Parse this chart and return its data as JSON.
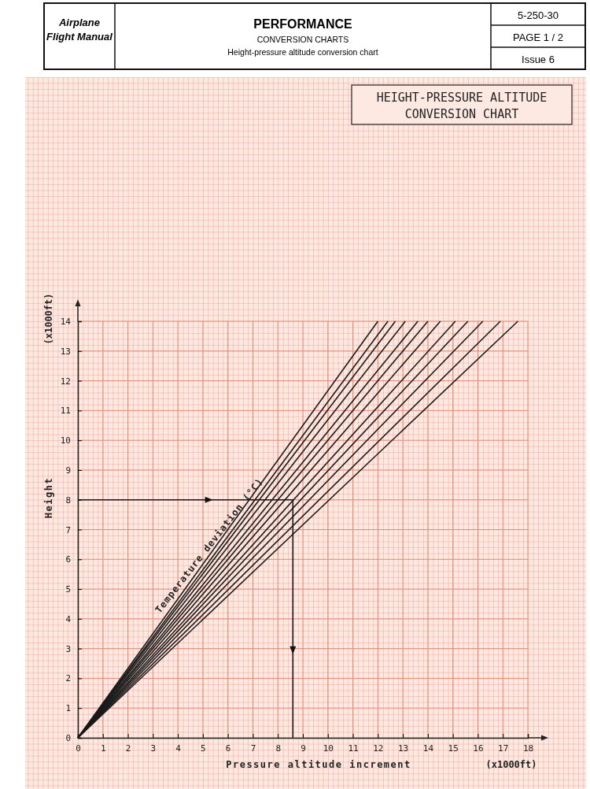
{
  "chart_data": {
    "type": "line",
    "title": "HEIGHT-PRESSURE ALTITUDE\nCONVERSION CHART",
    "xlabel": "Pressure altitude increment",
    "ylabel": "Height",
    "annotations": [
      "Airplane\nFlight Manual",
      "PERFORMANCE",
      "CONVERSION CHARTS",
      "Height-pressure altitude conversion chart",
      "5-250-30",
      "PAGE 1 / 2",
      "Issue 6",
      "(x1000ft)",
      "(x1000ft)",
      {
        "text": "Temperature deviation (°C)",
        "x": 5.6,
        "y": 6.4
      }
    ],
    "xlim": [
      0,
      18
    ],
    "ylim": [
      0,
      14
    ],
    "xticks": [
      0,
      1,
      2,
      3,
      4,
      5,
      6,
      7,
      8,
      9,
      10,
      11,
      12,
      13,
      14,
      15,
      16,
      17,
      18
    ],
    "yticks": [
      0,
      1,
      2,
      3,
      4,
      5,
      6,
      7,
      8,
      9,
      10,
      11,
      12,
      13,
      14
    ],
    "grid": true,
    "marker": "none",
    "line_style": "solid",
    "series": [
      {
        "color": "#1a1a1a",
        "x": [
          0,
          12.0
        ],
        "values": [
          0,
          14
        ]
      },
      {
        "color": "#1a1a1a",
        "x": [
          0,
          12.4
        ],
        "values": [
          0,
          14
        ]
      },
      {
        "color": "#1a1a1a",
        "x": [
          0,
          12.7
        ],
        "values": [
          0,
          14
        ]
      },
      {
        "color": "#1a1a1a",
        "x": [
          0,
          13.1
        ],
        "values": [
          0,
          14
        ]
      },
      {
        "color": "#1a1a1a",
        "x": [
          0,
          13.6
        ],
        "values": [
          0,
          14
        ]
      },
      {
        "color": "#1a1a1a",
        "x": [
          0,
          14.0
        ],
        "values": [
          0,
          14
        ]
      },
      {
        "color": "#1a1a1a",
        "x": [
          0,
          14.5
        ],
        "values": [
          0,
          14
        ]
      },
      {
        "color": "#1a1a1a",
        "x": [
          0,
          15.1
        ],
        "values": [
          0,
          14
        ]
      },
      {
        "color": "#1a1a1a",
        "x": [
          0,
          15.6
        ],
        "values": [
          0,
          14
        ]
      },
      {
        "color": "#1a1a1a",
        "x": [
          0,
          16.2
        ],
        "values": [
          0,
          14
        ]
      },
      {
        "color": "#1a1a1a",
        "x": [
          0,
          16.9
        ],
        "values": [
          0,
          14
        ]
      },
      {
        "color": "#1a1a1a",
        "x": [
          0,
          17.6
        ],
        "values": [
          0,
          14
        ]
      },
      {
        "color": "#1a1a1a",
        "x": [
          0,
          8.6,
          8.6
        ],
        "values": [
          8,
          8,
          0
        ]
      }
    ]
  }
}
